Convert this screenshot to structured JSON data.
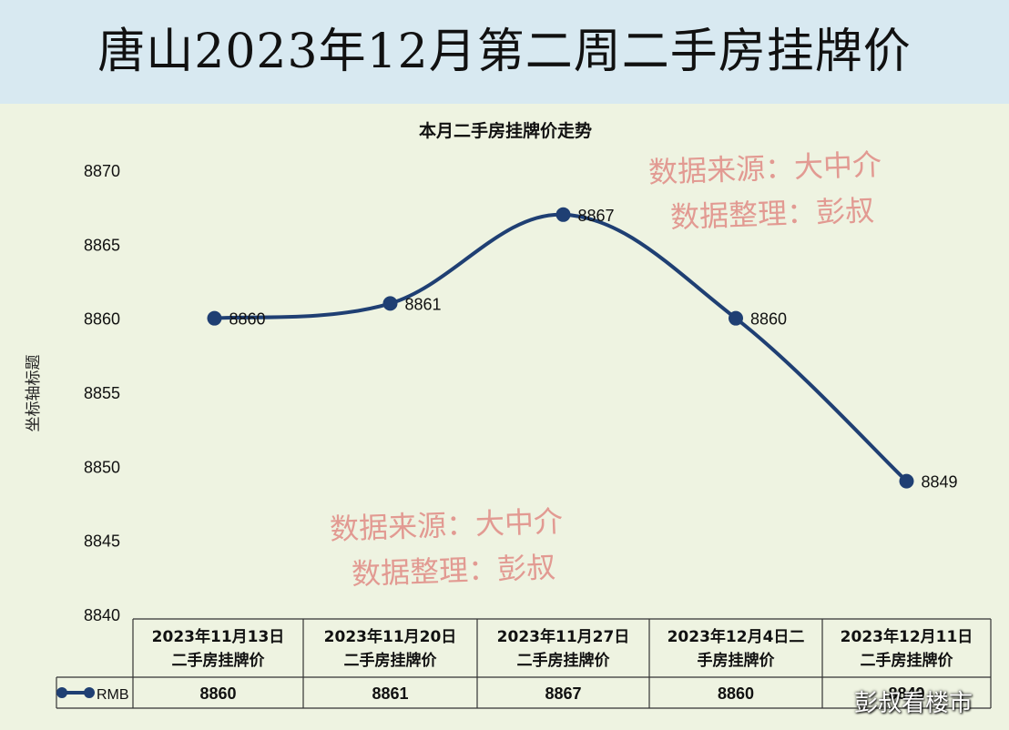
{
  "page": {
    "title": "唐山2023年12月第二周二手房挂牌价",
    "watermark_line1": "数据来源：大中介",
    "watermark_line2": "数据整理：彭叔",
    "credit": "彭叔看楼市"
  },
  "chart_data": {
    "type": "line",
    "title": "本月二手房挂牌价走势",
    "ylabel": "坐标轴标题",
    "xlabel": "",
    "ylim": [
      8840,
      8870
    ],
    "yticks": [
      8840,
      8845,
      8850,
      8855,
      8860,
      8865,
      8870
    ],
    "categories": [
      [
        "2023年11月13日",
        "二手房挂牌价"
      ],
      [
        "2023年11月20日",
        "二手房挂牌价"
      ],
      [
        "2023年11月27日",
        "二手房挂牌价"
      ],
      [
        "2023年12月4日二",
        "手房挂牌价"
      ],
      [
        "2023年12月11日",
        "二手房挂牌价"
      ]
    ],
    "series": [
      {
        "name": "RMB",
        "values": [
          8860,
          8861,
          8867,
          8860,
          8849
        ],
        "color": "#1f3f73"
      }
    ],
    "data_labels": [
      "8860",
      "8861",
      "8867",
      "8860",
      "8849"
    ],
    "data_table": true,
    "legend": "data-table",
    "grid": false,
    "smooth": true
  }
}
